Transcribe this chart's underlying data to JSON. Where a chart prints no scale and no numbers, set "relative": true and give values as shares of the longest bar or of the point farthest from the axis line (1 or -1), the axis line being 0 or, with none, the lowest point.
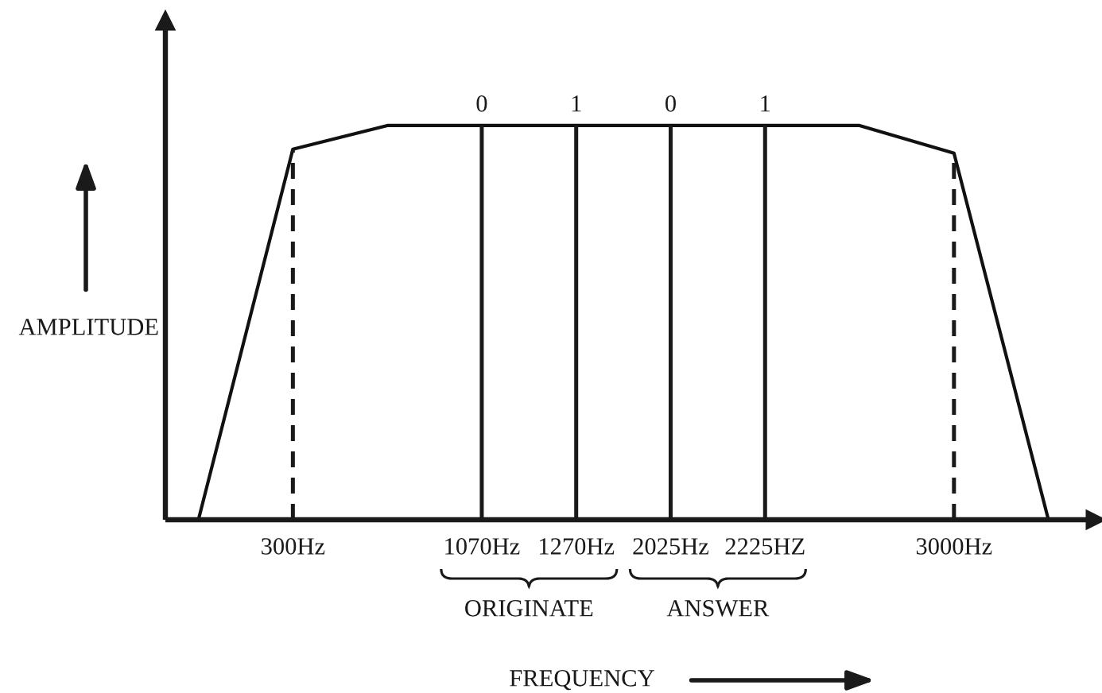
{
  "chart_data": {
    "type": "line",
    "relative": true,
    "xlabel": "FREQUENCY",
    "ylabel": "AMPLITUDE",
    "categories": [
      null,
      "300Hz",
      null,
      "1070Hz",
      "1270Hz",
      "2025Hz",
      "2225HZ",
      null,
      "3000Hz",
      null
    ],
    "series": [
      {
        "color": "#111111",
        "values": [
          0,
          0.94,
          1,
          1,
          1,
          1,
          1,
          1,
          0.93,
          0
        ]
      }
    ],
    "ref_lines": [
      {
        "axis": "x",
        "value": "300Hz",
        "line_style": "dashed"
      },
      {
        "axis": "x",
        "value": "1070Hz",
        "label": "0"
      },
      {
        "axis": "x",
        "value": "1270Hz",
        "label": "1"
      },
      {
        "axis": "x",
        "value": "2025Hz",
        "label": "0"
      },
      {
        "axis": "x",
        "value": "2225HZ",
        "label": "1"
      },
      {
        "axis": "x",
        "value": "3000Hz",
        "line_style": "dashed"
      }
    ],
    "annotations": [
      "ORIGINATE",
      "ANSWER"
    ],
    "grid": false
  }
}
